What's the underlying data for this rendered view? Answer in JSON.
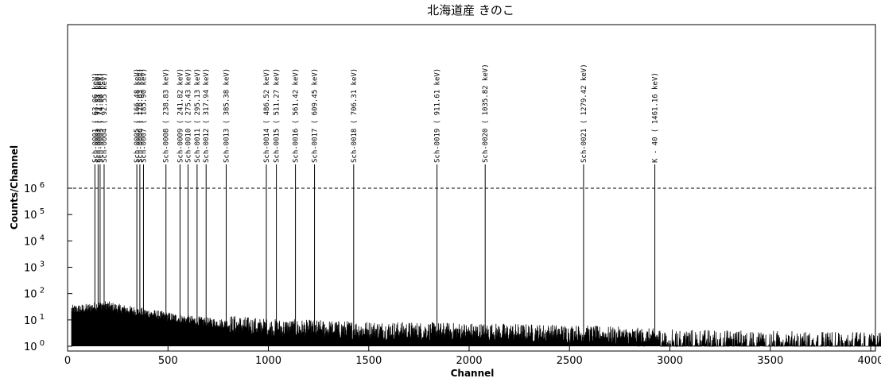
{
  "chart_data": {
    "type": "line",
    "title": "北海道産 きのこ",
    "xlabel": "Channel",
    "ylabel": "Counts/Channel",
    "xlim": [
      0,
      4096
    ],
    "ylim_log10": [
      0,
      6
    ],
    "log_y": true,
    "grid": false,
    "x_ticks": [
      0,
      500,
      1000,
      1500,
      2000,
      2500,
      3000,
      3500,
      4000
    ],
    "y_ticks": [
      {
        "base": "10",
        "exp": "0",
        "value": 1
      },
      {
        "base": "10",
        "exp": "1",
        "value": 10
      },
      {
        "base": "10",
        "exp": "2",
        "value": 100
      },
      {
        "base": "10",
        "exp": "3",
        "value": 1000
      },
      {
        "base": "10",
        "exp": "4",
        "value": 10000
      },
      {
        "base": "10",
        "exp": "5",
        "value": 100000
      },
      {
        "base": "10",
        "exp": "6",
        "value": 1000000
      }
    ],
    "reference_line": {
      "y": 1000000,
      "style": "dashed"
    },
    "peaks": [
      {
        "label": "Sch-0001 (  63.06 keV)",
        "channel": 136
      },
      {
        "label": "Sch-0002 (  72.51 keV)",
        "channel": 152
      },
      {
        "label": "Sch-0003 (  74.68 keV)",
        "channel": 162
      },
      {
        "label": "Sch-0004 (  92.55 keV)",
        "channel": 182
      },
      {
        "label": "Sch-0005 ( 166.48 keV)",
        "channel": 345
      },
      {
        "label": "Sch-0006 ( 176.63 keV)",
        "channel": 360
      },
      {
        "label": "Sch-0007 ( 185.90 keV)",
        "channel": 378
      },
      {
        "label": "Sch-0008 ( 238.83 keV)",
        "channel": 490
      },
      {
        "label": "Sch-0009 ( 241.82 keV)",
        "channel": 560
      },
      {
        "label": "Sch-0010 ( 275.43 keV)",
        "channel": 600
      },
      {
        "label": "Sch-0011 ( 295.13 keV)",
        "channel": 645
      },
      {
        "label": "Sch-0012 ( 317.94 keV)",
        "channel": 690
      },
      {
        "label": "Sch-0013 ( 385.38 keV)",
        "channel": 790
      },
      {
        "label": "Sch-0014 ( 486.52 keV)",
        "channel": 990
      },
      {
        "label": "Sch-0015 ( 511.27 keV)",
        "channel": 1040
      },
      {
        "label": "Sch-0016 ( 561.42 keV)",
        "channel": 1135
      },
      {
        "label": "Sch-0017 ( 609.45 keV)",
        "channel": 1230
      },
      {
        "label": "Sch-0018 ( 706.31 keV)",
        "channel": 1425
      },
      {
        "label": "Sch-0019 ( 911.61 keV)",
        "channel": 1840
      },
      {
        "label": "Sch-0020 ( 1035.82 keV)",
        "channel": 2080
      },
      {
        "label": "Sch-0021 ( 1279.42 keV)",
        "channel": 2570
      },
      {
        "label": "K - 40 ( 1461.16 keV)",
        "channel": 2925
      }
    ],
    "spectrum_envelope": [
      {
        "x": 20,
        "y": 25
      },
      {
        "x": 100,
        "y": 28
      },
      {
        "x": 150,
        "y": 35
      },
      {
        "x": 180,
        "y": 38
      },
      {
        "x": 250,
        "y": 28
      },
      {
        "x": 400,
        "y": 18
      },
      {
        "x": 600,
        "y": 10
      },
      {
        "x": 800,
        "y": 7
      },
      {
        "x": 1000,
        "y": 5
      },
      {
        "x": 1500,
        "y": 4
      },
      {
        "x": 2000,
        "y": 3.5
      },
      {
        "x": 2500,
        "y": 3
      },
      {
        "x": 3000,
        "y": 2
      },
      {
        "x": 4096,
        "y": 1.5
      }
    ]
  }
}
